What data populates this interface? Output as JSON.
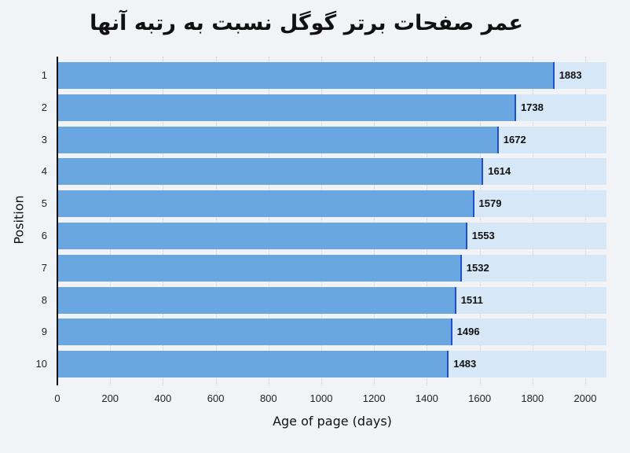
{
  "chart_data": {
    "type": "bar",
    "orientation": "horizontal",
    "title": "عمر صفحات برتر گوگل نسبت به رتبه آنها",
    "xlabel": "Age of page (days)",
    "ylabel": "Position",
    "categories": [
      "1",
      "2",
      "3",
      "4",
      "5",
      "6",
      "7",
      "8",
      "9",
      "10"
    ],
    "values": [
      1883,
      1738,
      1672,
      1614,
      1579,
      1553,
      1532,
      1511,
      1496,
      1483
    ],
    "xlim": [
      0,
      2080
    ],
    "xticks": [
      "0",
      "200",
      "400",
      "600",
      "800",
      "1000",
      "1200",
      "1400",
      "1600",
      "1800",
      "2000"
    ],
    "grid": "vertical dotted",
    "data_labels": true,
    "colors": {
      "bar": "#6aa6df",
      "track": "#d6e7f8",
      "bar_end": "#1f4fd1",
      "background": "#f2f3f7"
    }
  }
}
